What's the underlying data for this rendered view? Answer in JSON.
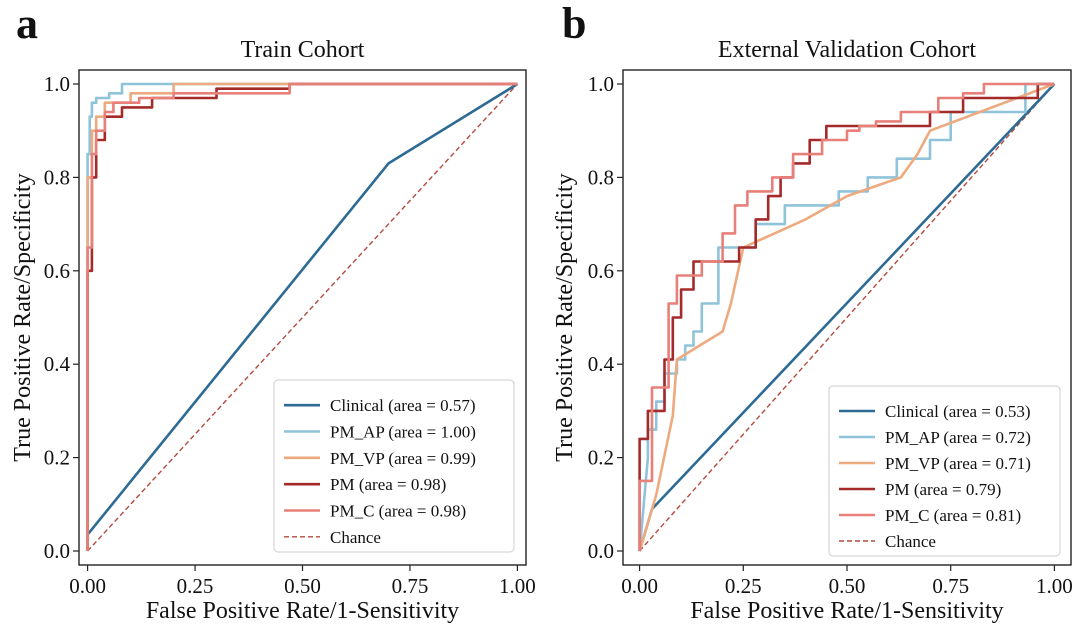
{
  "chart_data": [
    {
      "type": "line",
      "panel_letter": "a",
      "title": "Train Cohort",
      "xlabel": "False Positive Rate/1-Sensitivity",
      "ylabel": "True Positive Rate/Specificity",
      "xlim": [
        -0.02,
        1.02
      ],
      "ylim": [
        -0.03,
        1.03
      ],
      "xticks": [
        "0.00",
        "0.25",
        "0.50",
        "0.75",
        "1.00"
      ],
      "yticks": [
        "0.0",
        "0.2",
        "0.4",
        "0.6",
        "0.8",
        "1.0"
      ],
      "legend_position": "lower-right",
      "series": [
        {
          "name": "Clinical (area = 0.57)",
          "color": "#2e6b94",
          "x": [
            0,
            0,
            0.7,
            1.0
          ],
          "y": [
            0,
            0.035,
            0.83,
            1.0
          ]
        },
        {
          "name": "PM_AP (area = 1.00)",
          "color": "#8fc3d9",
          "x": [
            0,
            0,
            0.005,
            0.005,
            0.01,
            0.01,
            0.02,
            0.02,
            0.05,
            0.05,
            0.08,
            0.08,
            1.0
          ],
          "y": [
            0,
            0.85,
            0.85,
            0.93,
            0.93,
            0.96,
            0.96,
            0.97,
            0.97,
            0.98,
            0.98,
            1.0,
            1.0
          ]
        },
        {
          "name": "PM_VP (area = 0.99)",
          "color": "#eeaa7f",
          "x": [
            0,
            0,
            0.01,
            0.01,
            0.02,
            0.02,
            0.04,
            0.04,
            0.1,
            0.1,
            0.2,
            0.2,
            1.0
          ],
          "y": [
            0,
            0.8,
            0.8,
            0.9,
            0.9,
            0.93,
            0.93,
            0.96,
            0.96,
            0.98,
            0.98,
            1.0,
            1.0
          ]
        },
        {
          "name": "PM (area = 0.98)",
          "color": "#a52a2a",
          "x": [
            0,
            0,
            0.01,
            0.01,
            0.02,
            0.02,
            0.04,
            0.04,
            0.08,
            0.08,
            0.15,
            0.15,
            0.3,
            0.3,
            0.47,
            0.47,
            1.0
          ],
          "y": [
            0,
            0.6,
            0.6,
            0.8,
            0.8,
            0.88,
            0.88,
            0.93,
            0.93,
            0.95,
            0.95,
            0.97,
            0.97,
            0.99,
            0.99,
            1.0,
            1.0
          ]
        },
        {
          "name": "PM_C (area = 0.98)",
          "color": "#e8807a",
          "x": [
            0,
            0,
            0.01,
            0.01,
            0.02,
            0.02,
            0.04,
            0.04,
            0.06,
            0.06,
            0.12,
            0.12,
            0.2,
            0.2,
            0.47,
            0.47,
            1.0
          ],
          "y": [
            0,
            0.65,
            0.65,
            0.85,
            0.85,
            0.9,
            0.9,
            0.94,
            0.94,
            0.96,
            0.96,
            0.97,
            0.97,
            0.98,
            0.98,
            1.0,
            1.0
          ]
        },
        {
          "name": "Chance",
          "color": "#b34a3e",
          "dashed": true,
          "x": [
            0,
            1
          ],
          "y": [
            0,
            1
          ]
        }
      ]
    },
    {
      "type": "line",
      "panel_letter": "b",
      "title": "External Validation Cohort",
      "xlabel": "False Positive Rate/1-Sensitivity",
      "ylabel": "True Positive Rate/Specificity",
      "xlim": [
        -0.04,
        1.04
      ],
      "ylim": [
        -0.03,
        1.03
      ],
      "xticks": [
        "0.00",
        "0.25",
        "0.50",
        "0.75",
        "1.00"
      ],
      "yticks": [
        "0.0",
        "0.2",
        "0.4",
        "0.6",
        "0.8",
        "1.0"
      ],
      "legend_position": "lower-right",
      "series": [
        {
          "name": "Clinical (area = 0.53)",
          "color": "#2e6b94",
          "x": [
            0,
            0.03,
            1.0
          ],
          "y": [
            0,
            0.09,
            1.0
          ]
        },
        {
          "name": "PM_AP (area = 0.72)",
          "color": "#8fc3d9",
          "x": [
            0,
            0.02,
            0.02,
            0.04,
            0.04,
            0.06,
            0.06,
            0.09,
            0.09,
            0.11,
            0.11,
            0.13,
            0.13,
            0.15,
            0.15,
            0.19,
            0.19,
            0.28,
            0.28,
            0.35,
            0.35,
            0.48,
            0.48,
            0.55,
            0.55,
            0.62,
            0.62,
            0.7,
            0.7,
            0.75,
            0.75,
            0.93,
            0.93,
            1.0
          ],
          "y": [
            0,
            0.2,
            0.26,
            0.26,
            0.32,
            0.32,
            0.38,
            0.38,
            0.41,
            0.41,
            0.44,
            0.44,
            0.47,
            0.47,
            0.53,
            0.53,
            0.65,
            0.65,
            0.7,
            0.7,
            0.74,
            0.74,
            0.77,
            0.77,
            0.8,
            0.8,
            0.84,
            0.84,
            0.88,
            0.88,
            0.94,
            0.94,
            1.0,
            1.0
          ]
        },
        {
          "name": "PM_VP (area = 0.71)",
          "color": "#eeaa7f",
          "x": [
            0,
            0.02,
            0.02,
            0.04,
            0.04,
            0.08,
            0.08,
            0.09,
            0.09,
            0.2,
            0.2,
            0.22,
            0.22,
            0.25,
            0.25,
            0.4,
            0.4,
            0.5,
            0.5,
            0.63,
            0.63,
            0.67,
            0.67,
            0.7,
            0.7,
            1.0
          ],
          "y": [
            0,
            0.06,
            0.06,
            0.12,
            0.12,
            0.29,
            0.29,
            0.41,
            0.41,
            0.47,
            0.47,
            0.53,
            0.53,
            0.65,
            0.65,
            0.71,
            0.71,
            0.76,
            0.76,
            0.8,
            0.8,
            0.85,
            0.85,
            0.9,
            0.9,
            1.0
          ]
        },
        {
          "name": "PM (area = 0.79)",
          "color": "#a52a2a",
          "x": [
            0,
            0,
            0.02,
            0.02,
            0.06,
            0.06,
            0.08,
            0.08,
            0.1,
            0.1,
            0.13,
            0.13,
            0.18,
            0.18,
            0.24,
            0.24,
            0.28,
            0.28,
            0.31,
            0.31,
            0.34,
            0.34,
            0.37,
            0.37,
            0.41,
            0.41,
            0.45,
            0.45,
            0.7,
            0.7,
            0.78,
            0.78,
            0.86,
            0.86,
            0.96,
            0.96,
            1.0
          ],
          "y": [
            0,
            0.24,
            0.24,
            0.3,
            0.3,
            0.41,
            0.41,
            0.5,
            0.5,
            0.56,
            0.56,
            0.62,
            0.62,
            0.62,
            0.62,
            0.65,
            0.65,
            0.71,
            0.71,
            0.76,
            0.76,
            0.8,
            0.8,
            0.83,
            0.83,
            0.88,
            0.88,
            0.91,
            0.91,
            0.94,
            0.94,
            0.97,
            0.97,
            0.97,
            0.97,
            1.0,
            1.0
          ]
        },
        {
          "name": "PM_C (area = 0.81)",
          "color": "#e8807a",
          "x": [
            0,
            0,
            0.03,
            0.03,
            0.07,
            0.07,
            0.09,
            0.09,
            0.15,
            0.15,
            0.2,
            0.2,
            0.23,
            0.23,
            0.26,
            0.26,
            0.32,
            0.32,
            0.37,
            0.37,
            0.44,
            0.44,
            0.5,
            0.5,
            0.53,
            0.53,
            0.57,
            0.57,
            0.63,
            0.63,
            0.72,
            0.72,
            0.78,
            0.78,
            0.83,
            0.83,
            1.0
          ],
          "y": [
            0,
            0.15,
            0.15,
            0.35,
            0.35,
            0.53,
            0.53,
            0.59,
            0.59,
            0.62,
            0.62,
            0.68,
            0.68,
            0.74,
            0.74,
            0.77,
            0.77,
            0.8,
            0.8,
            0.85,
            0.85,
            0.88,
            0.88,
            0.9,
            0.9,
            0.91,
            0.91,
            0.92,
            0.92,
            0.94,
            0.94,
            0.97,
            0.97,
            0.98,
            0.98,
            1.0,
            1.0
          ]
        },
        {
          "name": "Chance",
          "color": "#b34a3e",
          "dashed": true,
          "x": [
            0,
            1
          ],
          "y": [
            0,
            1
          ]
        }
      ]
    }
  ]
}
